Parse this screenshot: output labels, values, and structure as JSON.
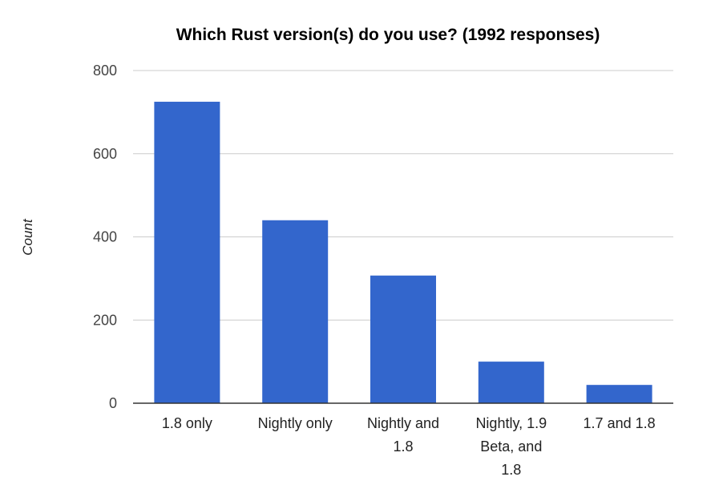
{
  "chart_data": {
    "type": "bar",
    "title": "Which Rust version(s) do you use? (1992 responses)",
    "xlabel": "",
    "ylabel": "Count",
    "categories": [
      [
        "1.8 only"
      ],
      [
        "Nightly only"
      ],
      [
        "Nightly and",
        "1.8"
      ],
      [
        "Nightly, 1.9",
        "Beta, and",
        "1.8"
      ],
      [
        "1.7 and 1.8"
      ]
    ],
    "values": [
      725,
      440,
      307,
      100,
      44
    ],
    "ylim": [
      0,
      800
    ],
    "yticks": [
      0,
      200,
      400,
      600,
      800
    ],
    "grid": true,
    "legend": "none",
    "bar_color": "#3366cc"
  }
}
